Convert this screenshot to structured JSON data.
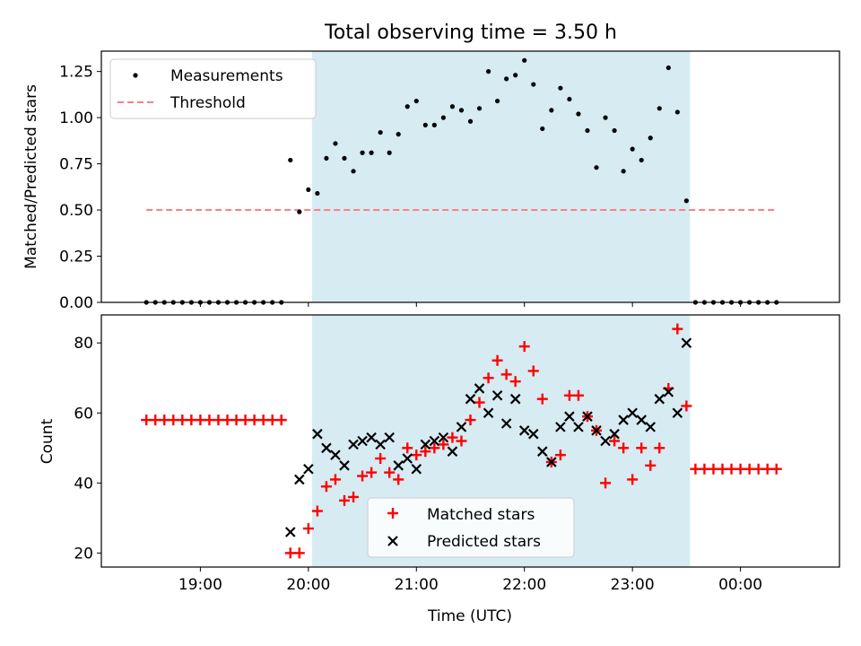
{
  "chart_data": [
    {
      "type": "scatter",
      "title": "Total observing time = 3.50 h",
      "ylabel": "Matched/Predicted stars",
      "ylim": [
        0,
        1.36
      ],
      "yticks": [
        0,
        0.25,
        0.5,
        0.75,
        1.0,
        1.25
      ],
      "ytick_labels": [
        "0.00",
        "0.25",
        "0.50",
        "0.75",
        "1.00",
        "1.25"
      ],
      "legend": {
        "placement": "top-left",
        "entries": [
          "Measurements",
          "Threshold"
        ]
      },
      "threshold": {
        "name": "Threshold",
        "value": 0.5,
        "x_range": [
          "18:30",
          "24:20"
        ],
        "color": "#ff7f7f"
      },
      "highlight": {
        "from": "20:02",
        "to": "23:32",
        "color": "#add8e6"
      },
      "series": [
        {
          "name": "Measurements",
          "color": "#000000",
          "x": [
            "18:30",
            "18:35",
            "18:40",
            "18:45",
            "18:50",
            "18:55",
            "19:00",
            "19:05",
            "19:10",
            "19:15",
            "19:20",
            "19:25",
            "19:30",
            "19:35",
            "19:40",
            "19:45",
            "19:50",
            "19:55",
            "20:00",
            "20:05",
            "20:10",
            "20:15",
            "20:20",
            "20:25",
            "20:30",
            "20:35",
            "20:40",
            "20:45",
            "20:50",
            "20:55",
            "21:00",
            "21:05",
            "21:10",
            "21:15",
            "21:20",
            "21:25",
            "21:30",
            "21:35",
            "21:40",
            "21:45",
            "21:50",
            "21:55",
            "22:00",
            "22:05",
            "22:10",
            "22:15",
            "22:20",
            "22:25",
            "22:30",
            "22:35",
            "22:40",
            "22:45",
            "22:50",
            "22:55",
            "23:00",
            "23:05",
            "23:10",
            "23:15",
            "23:20",
            "23:25",
            "23:30",
            "23:35",
            "23:40",
            "23:45",
            "23:50",
            "23:55",
            "24:00",
            "24:05",
            "24:10",
            "24:15",
            "24:20"
          ],
          "y": [
            0,
            0,
            0,
            0,
            0,
            0,
            0,
            0,
            0,
            0,
            0,
            0,
            0,
            0,
            0,
            0,
            0.77,
            0.49,
            0.61,
            0.59,
            0.78,
            0.86,
            0.78,
            0.71,
            0.81,
            0.81,
            0.92,
            0.81,
            0.91,
            1.06,
            1.09,
            0.96,
            0.96,
            1.0,
            1.06,
            1.04,
            0.98,
            1.05,
            1.25,
            1.09,
            1.21,
            1.23,
            1.31,
            1.18,
            0.94,
            1.04,
            1.16,
            1.1,
            1.02,
            0.93,
            0.73,
            1.0,
            0.93,
            0.71,
            0.83,
            0.77,
            0.89,
            1.05,
            1.27,
            1.03,
            0.55,
            0,
            0,
            0,
            0,
            0,
            0,
            0,
            0,
            0,
            0
          ]
        }
      ]
    },
    {
      "type": "scatter",
      "xlabel": "Time (UTC)",
      "ylabel": "Count",
      "ylim": [
        16,
        88
      ],
      "yticks": [
        20,
        40,
        60,
        80
      ],
      "xlim": [
        "18:05",
        "24:55"
      ],
      "xticks": [
        "19:00",
        "20:00",
        "21:00",
        "22:00",
        "23:00",
        "24:00"
      ],
      "xtick_labels": [
        "19:00",
        "20:00",
        "21:00",
        "22:00",
        "23:00",
        "00:00"
      ],
      "legend": {
        "placement": "bottom-center",
        "entries": [
          "Matched stars",
          "Predicted stars"
        ]
      },
      "highlight": {
        "from": "20:02",
        "to": "23:32",
        "color": "#add8e6"
      },
      "series": [
        {
          "name": "Matched stars",
          "marker": "+",
          "color": "#ff0000",
          "x": [
            "18:30",
            "18:35",
            "18:40",
            "18:45",
            "18:50",
            "18:55",
            "19:00",
            "19:05",
            "19:10",
            "19:15",
            "19:20",
            "19:25",
            "19:30",
            "19:35",
            "19:40",
            "19:45",
            "19:50",
            "19:55",
            "20:00",
            "20:05",
            "20:10",
            "20:15",
            "20:20",
            "20:25",
            "20:30",
            "20:35",
            "20:40",
            "20:45",
            "20:50",
            "20:55",
            "21:00",
            "21:05",
            "21:10",
            "21:15",
            "21:20",
            "21:25",
            "21:30",
            "21:35",
            "21:40",
            "21:45",
            "21:50",
            "21:55",
            "22:00",
            "22:05",
            "22:10",
            "22:15",
            "22:20",
            "22:25",
            "22:30",
            "22:35",
            "22:40",
            "22:45",
            "22:50",
            "22:55",
            "23:00",
            "23:05",
            "23:10",
            "23:15",
            "23:20",
            "23:25",
            "23:30",
            "23:35",
            "23:40",
            "23:45",
            "23:50",
            "23:55",
            "24:00",
            "24:05",
            "24:10",
            "24:15",
            "24:20"
          ],
          "y": [
            58,
            58,
            58,
            58,
            58,
            58,
            58,
            58,
            58,
            58,
            58,
            58,
            58,
            58,
            58,
            58,
            20,
            20,
            27,
            32,
            39,
            41,
            35,
            36,
            42,
            43,
            47,
            43,
            41,
            50,
            48,
            49,
            50,
            51,
            53,
            52,
            58,
            63,
            70,
            75,
            71,
            69,
            79,
            72,
            64,
            46,
            48,
            65,
            65,
            59,
            55,
            40,
            52,
            50,
            41,
            50,
            45,
            50,
            67,
            84,
            62,
            44,
            44,
            44,
            44,
            44,
            44,
            44,
            44,
            44,
            44
          ]
        },
        {
          "name": "Predicted stars",
          "marker": "x",
          "color": "#000000",
          "x": [
            "19:50",
            "19:55",
            "20:00",
            "20:05",
            "20:10",
            "20:15",
            "20:20",
            "20:25",
            "20:30",
            "20:35",
            "20:40",
            "20:45",
            "20:50",
            "20:55",
            "21:00",
            "21:05",
            "21:10",
            "21:15",
            "21:20",
            "21:25",
            "21:30",
            "21:35",
            "21:40",
            "21:45",
            "21:50",
            "21:55",
            "22:00",
            "22:05",
            "22:10",
            "22:15",
            "22:20",
            "22:25",
            "22:30",
            "22:35",
            "22:40",
            "22:45",
            "22:50",
            "22:55",
            "23:00",
            "23:05",
            "23:10",
            "23:15",
            "23:20",
            "23:25",
            "23:30"
          ],
          "y": [
            26,
            41,
            44,
            54,
            50,
            48,
            45,
            51,
            52,
            53,
            51,
            53,
            45,
            47,
            44,
            51,
            52,
            53,
            49,
            56,
            64,
            67,
            60,
            65,
            57,
            64,
            55,
            54,
            49,
            46,
            56,
            59,
            56,
            59,
            55,
            52,
            54,
            58,
            60,
            58,
            56,
            64,
            66,
            60,
            80
          ]
        }
      ]
    }
  ]
}
